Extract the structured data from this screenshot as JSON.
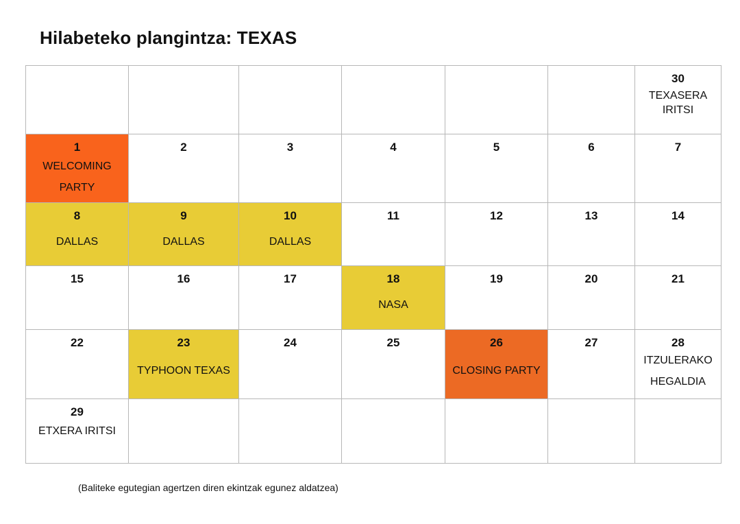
{
  "title": "Hilabeteko plangintza: TEXAS",
  "colors": {
    "yellow": "#e8cc36",
    "orange": "#f9631c",
    "orange_dark": "#ec6a24",
    "grid": "#b7b7b7"
  },
  "rows": [
    [
      {
        "day": "",
        "event": ""
      },
      {
        "day": "",
        "event": ""
      },
      {
        "day": "",
        "event": ""
      },
      {
        "day": "",
        "event": ""
      },
      {
        "day": "",
        "event": ""
      },
      {
        "day": "",
        "event": ""
      },
      {
        "day": "30",
        "event": "TEXASERA IRITSI"
      }
    ],
    [
      {
        "day": "1",
        "event": "WELCOMING PARTY",
        "highlight": "orange"
      },
      {
        "day": "2",
        "event": ""
      },
      {
        "day": "3",
        "event": ""
      },
      {
        "day": "4",
        "event": ""
      },
      {
        "day": "5",
        "event": ""
      },
      {
        "day": "6",
        "event": ""
      },
      {
        "day": "7",
        "event": ""
      }
    ],
    [
      {
        "day": "8",
        "event": "DALLAS",
        "highlight": "yellow"
      },
      {
        "day": "9",
        "event": "DALLAS",
        "highlight": "yellow"
      },
      {
        "day": "10",
        "event": "DALLAS",
        "highlight": "yellow"
      },
      {
        "day": "11",
        "event": ""
      },
      {
        "day": "12",
        "event": ""
      },
      {
        "day": "13",
        "event": ""
      },
      {
        "day": "14",
        "event": ""
      }
    ],
    [
      {
        "day": "15",
        "event": ""
      },
      {
        "day": "16",
        "event": ""
      },
      {
        "day": "17",
        "event": ""
      },
      {
        "day": "18",
        "event": "NASA",
        "highlight": "yellow"
      },
      {
        "day": "19",
        "event": ""
      },
      {
        "day": "20",
        "event": ""
      },
      {
        "day": "21",
        "event": ""
      }
    ],
    [
      {
        "day": "22",
        "event": ""
      },
      {
        "day": "23",
        "event": "TYPHOON TEXAS",
        "highlight": "yellow"
      },
      {
        "day": "24",
        "event": ""
      },
      {
        "day": "25",
        "event": ""
      },
      {
        "day": "26",
        "event": "CLOSING PARTY",
        "highlight": "orange_dark"
      },
      {
        "day": "27",
        "event": ""
      },
      {
        "day": "28",
        "event": "ITZULERAKO HEGALDIA"
      }
    ],
    [
      {
        "day": "29",
        "event": "ETXERA IRITSI"
      },
      {
        "day": "",
        "event": ""
      },
      {
        "day": "",
        "event": ""
      },
      {
        "day": "",
        "event": ""
      },
      {
        "day": "",
        "event": ""
      },
      {
        "day": "",
        "event": ""
      },
      {
        "day": "",
        "event": ""
      }
    ]
  ],
  "note": "(Baliteke egutegian agertzen diren ekintzak egunez aldatzea)"
}
